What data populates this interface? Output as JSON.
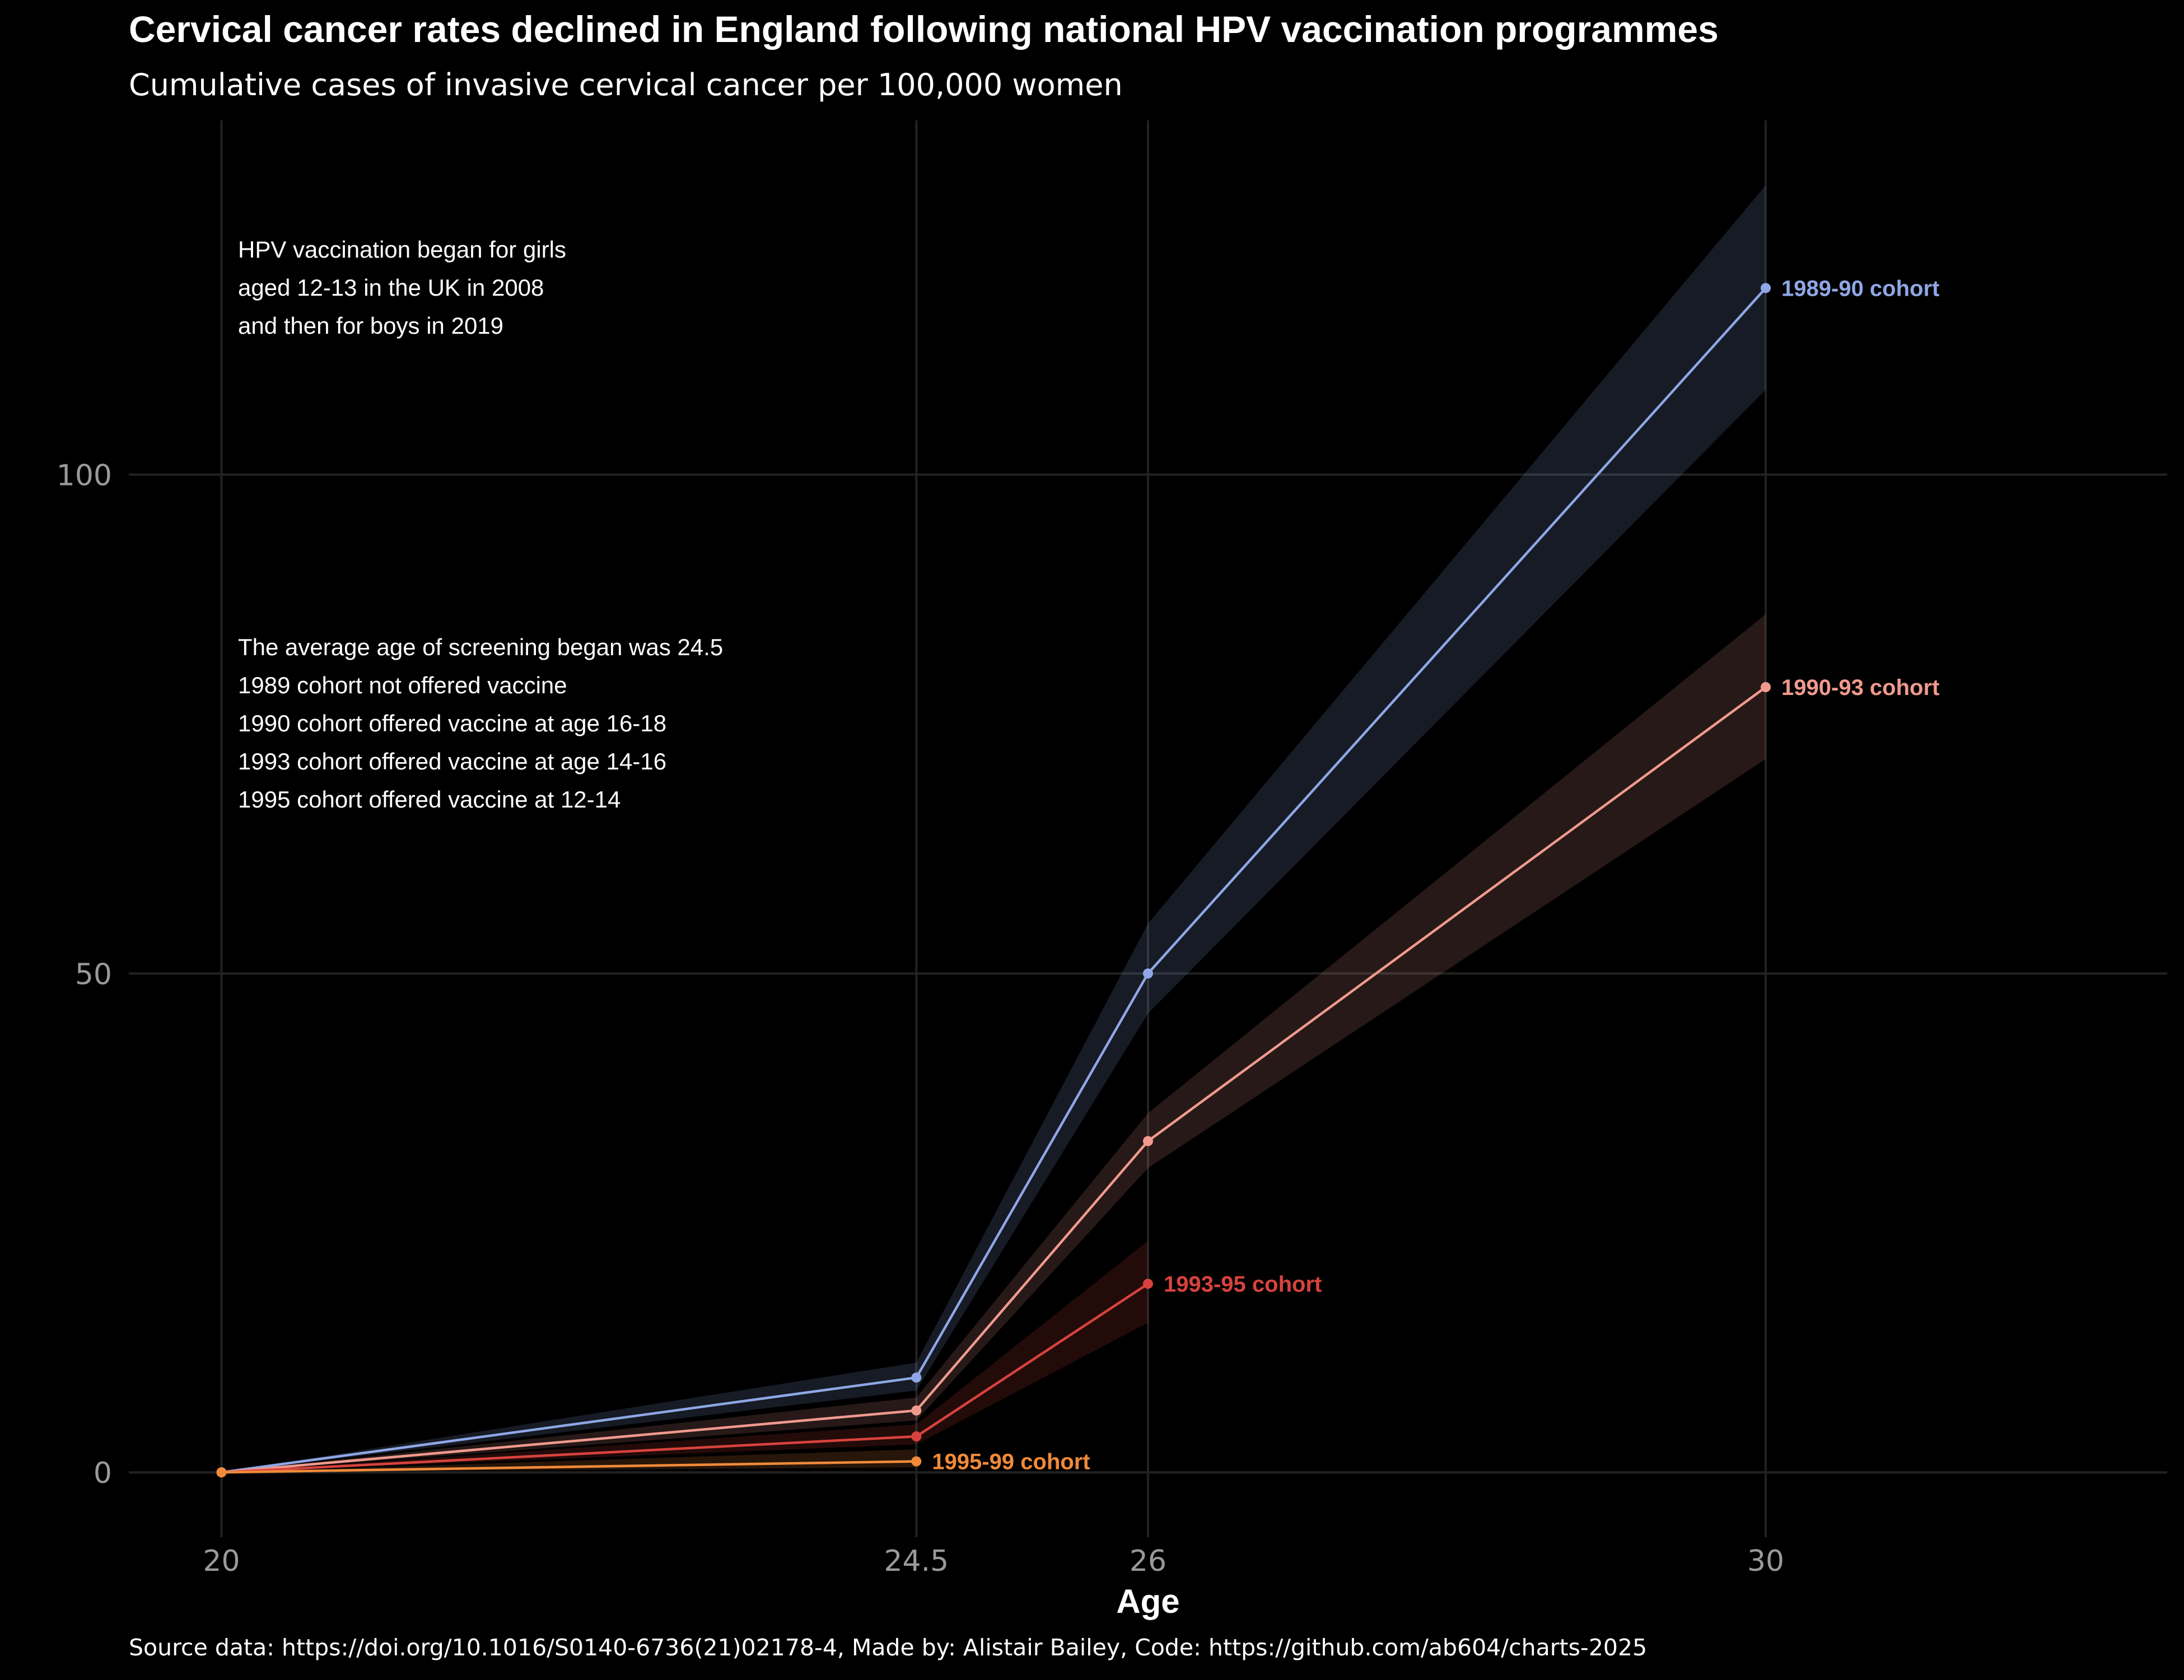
{
  "chart_data": {
    "type": "line",
    "title": "Cervical cancer rates declined in England following national HPV vaccination programmes",
    "subtitle": "Cumulative cases of invasive cervical cancer per 100,000 women",
    "xlabel": "Age",
    "ylabel": "",
    "x_ticks": [
      "20",
      "24.5",
      "26",
      "30"
    ],
    "y_ticks": [
      "0",
      "50",
      "100"
    ],
    "xlim": [
      19.4,
      32.6
    ],
    "ylim": [
      -6.5,
      135.5
    ],
    "grid": true,
    "legend": "direct-labels",
    "series": [
      {
        "name": "1989-90 cohort",
        "color": "#8fa7e6",
        "points": [
          {
            "x": 20,
            "y": 0,
            "lo": 0,
            "hi": 0
          },
          {
            "x": 24.5,
            "y": 9.5,
            "lo": 8.2,
            "hi": 11
          },
          {
            "x": 26,
            "y": 50,
            "lo": 46,
            "hi": 55
          },
          {
            "x": 30,
            "y": 118.7,
            "lo": 108.5,
            "hi": 129
          }
        ]
      },
      {
        "name": "1990-93 cohort",
        "color": "#f09a8e",
        "points": [
          {
            "x": 20,
            "y": 0,
            "lo": 0,
            "hi": 0
          },
          {
            "x": 24.5,
            "y": 6.2,
            "lo": 5.2,
            "hi": 7.5
          },
          {
            "x": 26,
            "y": 33.2,
            "lo": 30.5,
            "hi": 36
          },
          {
            "x": 30,
            "y": 78.7,
            "lo": 71.5,
            "hi": 86
          }
        ]
      },
      {
        "name": "1993-95 cohort",
        "color": "#d8433d",
        "points": [
          {
            "x": 20,
            "y": 0,
            "lo": 0,
            "hi": 0
          },
          {
            "x": 24.5,
            "y": 3.6,
            "lo": 2.8,
            "hi": 4.8
          },
          {
            "x": 26,
            "y": 18.9,
            "lo": 15,
            "hi": 23.2
          }
        ]
      },
      {
        "name": "1995-99 cohort",
        "color": "#f08a3a",
        "points": [
          {
            "x": 20,
            "y": 0,
            "lo": 0,
            "hi": 0
          },
          {
            "x": 24.5,
            "y": 1.1,
            "lo": 0.5,
            "hi": 2.3
          }
        ]
      }
    ],
    "annotations": [
      {
        "lines": [
          "HPV vaccination began for girls",
          "aged 12-13 in the UK in 2008",
          "and then for boys in 2019"
        ]
      },
      {
        "lines": [
          "The average age of screening began was 24.5",
          "1989 cohort not offered vaccine",
          "1990 cohort offered vaccine at age 16-18",
          "1993 cohort offered vaccine at age 14-16",
          "1995 cohort offered vaccine at 12-14"
        ]
      }
    ]
  },
  "caption": "Source data: https://doi.org/10.1016/S0140-6736(21)02178-4, Made by: Alistair Bailey, Code: https://github.com/ab604/charts-2025"
}
